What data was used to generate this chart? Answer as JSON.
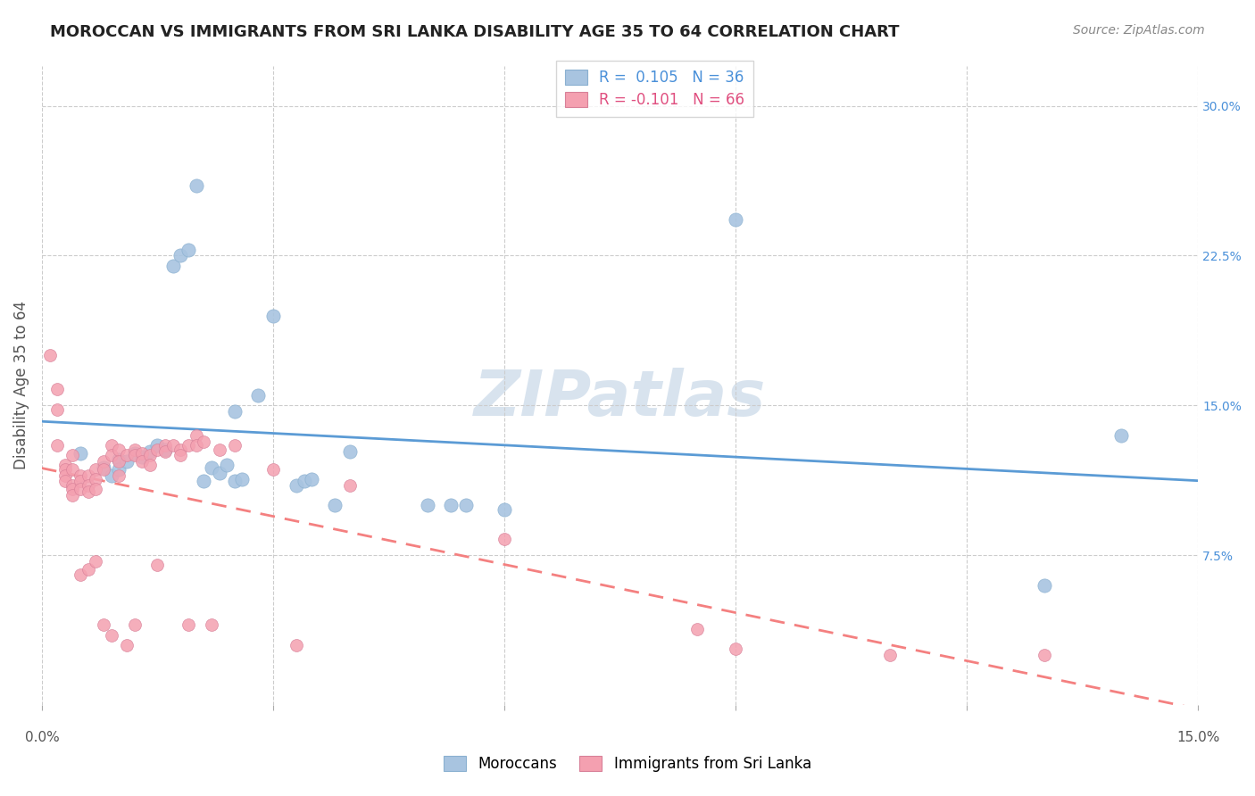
{
  "title": "MOROCCAN VS IMMIGRANTS FROM SRI LANKA DISABILITY AGE 35 TO 64 CORRELATION CHART",
  "source": "Source: ZipAtlas.com",
  "ylabel": "Disability Age 35 to 64",
  "ytick_values": [
    0.075,
    0.15,
    0.225,
    0.3
  ],
  "xlim": [
    0.0,
    0.15
  ],
  "ylim": [
    0.0,
    0.32
  ],
  "legend_label1": "Moroccans",
  "legend_label2": "Immigrants from Sri Lanka",
  "R1": 0.105,
  "N1": 36,
  "R2": -0.101,
  "N2": 66,
  "color_blue": "#a8c4e0",
  "color_pink": "#f4a0b0",
  "color_blue_text": "#4a90d9",
  "color_pink_text": "#e05080",
  "trendline1_color": "#5b9bd5",
  "trendline2_color": "#f48080",
  "blue_points": [
    [
      0.005,
      0.126
    ],
    [
      0.008,
      0.119
    ],
    [
      0.009,
      0.115
    ],
    [
      0.01,
      0.123
    ],
    [
      0.01,
      0.118
    ],
    [
      0.011,
      0.122
    ],
    [
      0.012,
      0.126
    ],
    [
      0.013,
      0.124
    ],
    [
      0.014,
      0.127
    ],
    [
      0.015,
      0.13
    ],
    [
      0.016,
      0.128
    ],
    [
      0.017,
      0.22
    ],
    [
      0.018,
      0.225
    ],
    [
      0.019,
      0.228
    ],
    [
      0.02,
      0.26
    ],
    [
      0.021,
      0.112
    ],
    [
      0.022,
      0.119
    ],
    [
      0.023,
      0.116
    ],
    [
      0.024,
      0.12
    ],
    [
      0.025,
      0.147
    ],
    [
      0.025,
      0.112
    ],
    [
      0.026,
      0.113
    ],
    [
      0.028,
      0.155
    ],
    [
      0.03,
      0.195
    ],
    [
      0.033,
      0.11
    ],
    [
      0.034,
      0.112
    ],
    [
      0.035,
      0.113
    ],
    [
      0.038,
      0.1
    ],
    [
      0.04,
      0.127
    ],
    [
      0.05,
      0.1
    ],
    [
      0.053,
      0.1
    ],
    [
      0.055,
      0.1
    ],
    [
      0.06,
      0.098
    ],
    [
      0.09,
      0.243
    ],
    [
      0.13,
      0.06
    ],
    [
      0.14,
      0.135
    ]
  ],
  "pink_points": [
    [
      0.001,
      0.175
    ],
    [
      0.002,
      0.158
    ],
    [
      0.002,
      0.148
    ],
    [
      0.002,
      0.13
    ],
    [
      0.003,
      0.12
    ],
    [
      0.003,
      0.118
    ],
    [
      0.003,
      0.115
    ],
    [
      0.003,
      0.112
    ],
    [
      0.004,
      0.125
    ],
    [
      0.004,
      0.118
    ],
    [
      0.004,
      0.11
    ],
    [
      0.004,
      0.108
    ],
    [
      0.004,
      0.105
    ],
    [
      0.005,
      0.115
    ],
    [
      0.005,
      0.112
    ],
    [
      0.005,
      0.108
    ],
    [
      0.005,
      0.065
    ],
    [
      0.006,
      0.115
    ],
    [
      0.006,
      0.11
    ],
    [
      0.006,
      0.107
    ],
    [
      0.006,
      0.068
    ],
    [
      0.007,
      0.118
    ],
    [
      0.007,
      0.113
    ],
    [
      0.007,
      0.108
    ],
    [
      0.007,
      0.072
    ],
    [
      0.008,
      0.122
    ],
    [
      0.008,
      0.118
    ],
    [
      0.008,
      0.04
    ],
    [
      0.009,
      0.13
    ],
    [
      0.009,
      0.125
    ],
    [
      0.009,
      0.035
    ],
    [
      0.01,
      0.128
    ],
    [
      0.01,
      0.122
    ],
    [
      0.01,
      0.115
    ],
    [
      0.011,
      0.125
    ],
    [
      0.011,
      0.03
    ],
    [
      0.012,
      0.128
    ],
    [
      0.012,
      0.125
    ],
    [
      0.012,
      0.04
    ],
    [
      0.013,
      0.126
    ],
    [
      0.013,
      0.122
    ],
    [
      0.014,
      0.125
    ],
    [
      0.014,
      0.12
    ],
    [
      0.015,
      0.128
    ],
    [
      0.015,
      0.07
    ],
    [
      0.016,
      0.13
    ],
    [
      0.016,
      0.127
    ],
    [
      0.017,
      0.13
    ],
    [
      0.018,
      0.128
    ],
    [
      0.018,
      0.125
    ],
    [
      0.019,
      0.13
    ],
    [
      0.019,
      0.04
    ],
    [
      0.02,
      0.135
    ],
    [
      0.02,
      0.13
    ],
    [
      0.021,
      0.132
    ],
    [
      0.022,
      0.04
    ],
    [
      0.023,
      0.128
    ],
    [
      0.025,
      0.13
    ],
    [
      0.03,
      0.118
    ],
    [
      0.033,
      0.03
    ],
    [
      0.04,
      0.11
    ],
    [
      0.06,
      0.083
    ],
    [
      0.085,
      0.038
    ],
    [
      0.09,
      0.028
    ],
    [
      0.11,
      0.025
    ],
    [
      0.13,
      0.025
    ]
  ],
  "watermark_text": "ZIPatlas",
  "watermark_color": "#c8d8e8",
  "watermark_fontsize": 52
}
